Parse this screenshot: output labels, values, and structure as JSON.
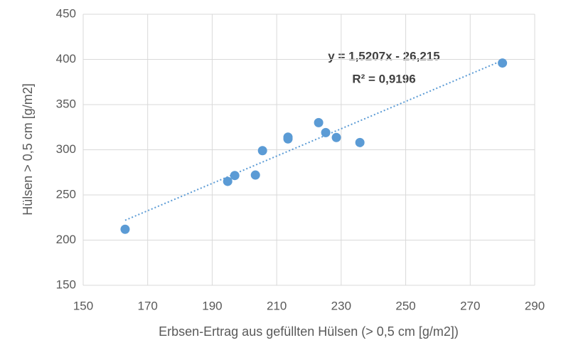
{
  "chart_data": {
    "type": "scatter",
    "x_label": "Erbsen-Ertrag aus gefüllten Hülsen (> 0,5 cm [g/m2])",
    "y_label": "Hülsen > 0,5 cm [g/m2]",
    "x": [
      163,
      194.8,
      197,
      203.4,
      205.6,
      213.5,
      213.5,
      223,
      225.2,
      228.5,
      235.8,
      280
    ],
    "values": [
      212,
      265,
      271.5,
      272,
      299,
      314,
      312,
      330,
      319,
      313.6,
      308,
      396
    ],
    "color": "#5b9bd5",
    "xlim": [
      150,
      290
    ],
    "xticks": [
      150,
      170,
      190,
      210,
      230,
      250,
      270,
      290
    ],
    "ylim": [
      150,
      450
    ],
    "yticks": [
      150,
      200,
      250,
      300,
      350,
      400,
      450
    ],
    "grid": true,
    "trendline": true,
    "annotations": [
      "y = 1,5207x - 26,215",
      "R² = 0,9196"
    ]
  }
}
